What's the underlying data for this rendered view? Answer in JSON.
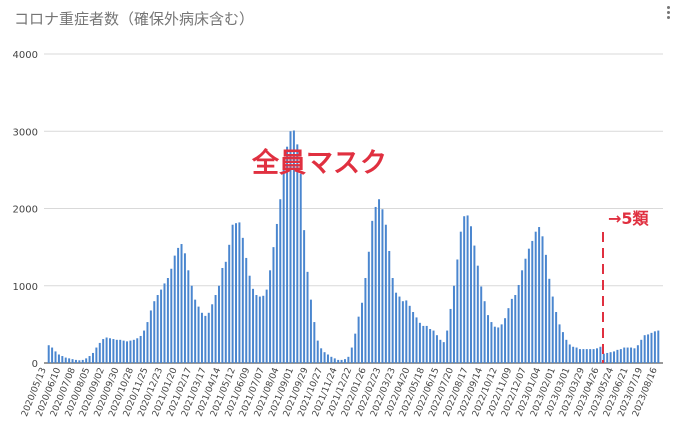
{
  "chart_data": {
    "type": "bar",
    "title": "コロナ重症者数（確保外病床含む）",
    "ylim": [
      0,
      4000
    ],
    "yticks": [
      "0",
      "1000",
      "2000",
      "3000",
      "4000"
    ],
    "grid": true,
    "bar_color": "#4a86cf",
    "x_tick_labels": [
      "2020/05/13",
      "2020/06/10",
      "2020/07/08",
      "2020/08/05",
      "2020/09/02",
      "2020/09/30",
      "2020/10/28",
      "2020/11/25",
      "2020/12/23",
      "2021/01/20",
      "2021/02/17",
      "2021/03/17",
      "2021/04/14",
      "2021/05/12",
      "2021/06/09",
      "2021/07/07",
      "2021/08/04",
      "2021/09/01",
      "2021/09/29",
      "2021/10/27",
      "2021/11/24",
      "2021/12/22",
      "2022/01/26",
      "2022/02/23",
      "2022/03/23",
      "2022/04/20",
      "2022/05/18",
      "2022/06/15",
      "2022/07/20",
      "2022/08/17",
      "2022/09/14",
      "2022/10/12",
      "2022/11/09",
      "2022/12/07",
      "2023/01/04",
      "2023/02/01",
      "2023/03/01",
      "2023/03/29",
      "2023/04/26",
      "2023/05/24",
      "2023/06/21",
      "2023/07/19",
      "2023/08/16"
    ],
    "values": [
      230,
      200,
      150,
      110,
      90,
      70,
      60,
      50,
      40,
      35,
      40,
      60,
      90,
      130,
      200,
      260,
      310,
      330,
      320,
      310,
      300,
      300,
      290,
      280,
      290,
      300,
      320,
      350,
      420,
      530,
      680,
      800,
      880,
      950,
      1030,
      1100,
      1220,
      1390,
      1490,
      1540,
      1420,
      1200,
      1000,
      820,
      730,
      650,
      610,
      650,
      760,
      880,
      1000,
      1230,
      1310,
      1530,
      1790,
      1810,
      1820,
      1620,
      1360,
      1130,
      960,
      880,
      860,
      870,
      950,
      1200,
      1500,
      1800,
      2120,
      2570,
      2800,
      3000,
      3010,
      2830,
      2450,
      1720,
      1180,
      820,
      530,
      290,
      190,
      140,
      110,
      80,
      60,
      40,
      40,
      50,
      80,
      200,
      380,
      600,
      780,
      1100,
      1440,
      1840,
      2020,
      2120,
      1990,
      1790,
      1450,
      1100,
      910,
      860,
      800,
      810,
      740,
      660,
      590,
      520,
      480,
      480,
      440,
      420,
      360,
      300,
      270,
      420,
      700,
      1000,
      1340,
      1700,
      1900,
      1910,
      1770,
      1520,
      1260,
      990,
      800,
      620,
      530,
      470,
      460,
      500,
      580,
      710,
      830,
      880,
      1010,
      1200,
      1350,
      1480,
      1580,
      1700,
      1760,
      1640,
      1400,
      1090,
      860,
      660,
      500,
      400,
      300,
      240,
      210,
      200,
      180,
      180,
      180,
      180,
      180,
      190,
      210,
      120,
      130,
      140,
      150,
      170,
      180,
      200,
      200,
      200,
      190,
      230,
      300,
      360,
      370,
      390,
      410,
      420
    ],
    "annotations": [
      {
        "text": "全員マスク"
      },
      {
        "text": "→5類",
        "marker": "dashed vertical line",
        "color": "#e03040"
      }
    ]
  }
}
